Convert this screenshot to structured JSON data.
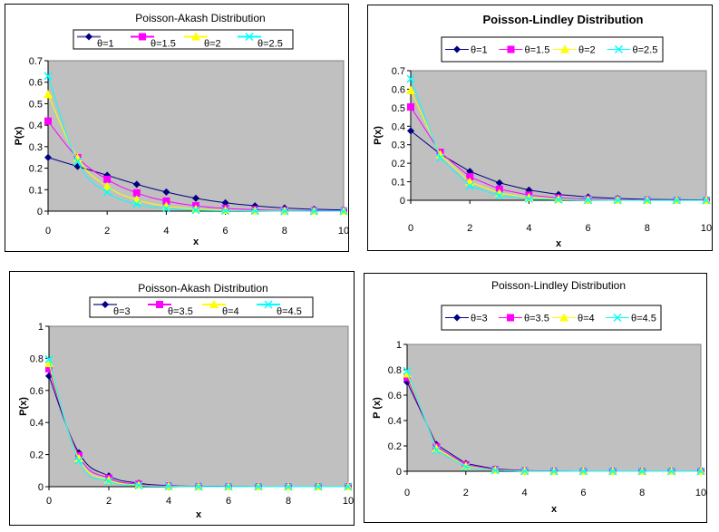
{
  "chart_data": [
    {
      "type": "line",
      "title": "Poisson-Akash Distribution",
      "xlabel": "x",
      "ylabel": "P(x)",
      "x": [
        0,
        1,
        2,
        3,
        4,
        5,
        6,
        7,
        8,
        9,
        10
      ],
      "xticks": [
        0,
        2,
        4,
        6,
        8,
        10
      ],
      "xlim": [
        0,
        10
      ],
      "ylim": [
        0,
        0.7
      ],
      "yticks": [
        0,
        0.1,
        0.2,
        0.3,
        0.4,
        0.5,
        0.6,
        0.7
      ],
      "ytick_labels": [
        "0",
        "0.1",
        "0.2",
        "0.3",
        "0.4",
        "0.5",
        "0.6",
        "0.7"
      ],
      "legend_position": "top",
      "grid": false,
      "series": [
        {
          "name": "θ=1",
          "color": "#000080",
          "marker": "diamond",
          "values": [
            0.25,
            0.208,
            0.167,
            0.125,
            0.089,
            0.06,
            0.039,
            0.025,
            0.015,
            0.009,
            0.006
          ]
        },
        {
          "name": "θ=1.5",
          "color": "#FF00FF",
          "marker": "square",
          "values": [
            0.419,
            0.249,
            0.148,
            0.085,
            0.047,
            0.025,
            0.013,
            0.007,
            0.003,
            0.002,
            0.001
          ]
        },
        {
          "name": "θ=2",
          "color": "#FFFF00",
          "marker": "triangle",
          "values": [
            0.543,
            0.247,
            0.115,
            0.053,
            0.024,
            0.01,
            0.004,
            0.002,
            0.001,
            0.0,
            0.0
          ]
        },
        {
          "name": "θ=2.5",
          "color": "#00FFFF",
          "marker": "x",
          "values": [
            0.629,
            0.23,
            0.088,
            0.033,
            0.012,
            0.005,
            0.002,
            0.001,
            0.0,
            0.0,
            0.0
          ]
        }
      ]
    },
    {
      "type": "line",
      "title": "Poisson-Lindley Distribution",
      "xlabel": "x",
      "ylabel": "P(x)",
      "x": [
        0,
        1,
        2,
        3,
        4,
        5,
        6,
        7,
        8,
        9,
        10
      ],
      "xticks": [
        0,
        2,
        4,
        6,
        8,
        10
      ],
      "xlim": [
        0,
        10
      ],
      "ylim": [
        0,
        0.7
      ],
      "yticks": [
        0,
        0.1,
        0.2,
        0.3,
        0.4,
        0.5,
        0.6,
        0.7
      ],
      "ytick_labels": [
        "0",
        "0.1",
        "0.2",
        "0.3",
        "0.4",
        "0.5",
        "0.6",
        "0.7"
      ],
      "legend_position": "top",
      "grid": false,
      "series": [
        {
          "name": "θ=1",
          "color": "#000080",
          "marker": "diamond",
          "values": [
            0.375,
            0.25,
            0.156,
            0.094,
            0.055,
            0.031,
            0.018,
            0.01,
            0.005,
            0.003,
            0.002
          ]
        },
        {
          "name": "θ=1.5",
          "color": "#FF00FF",
          "marker": "square",
          "values": [
            0.504,
            0.259,
            0.127,
            0.06,
            0.028,
            0.013,
            0.006,
            0.003,
            0.001,
            0.0,
            0.0
          ]
        },
        {
          "name": "θ=2",
          "color": "#FFFF00",
          "marker": "triangle",
          "values": [
            0.593,
            0.247,
            0.099,
            0.038,
            0.015,
            0.006,
            0.002,
            0.001,
            0.0,
            0.0,
            0.0
          ]
        },
        {
          "name": "θ=2.5",
          "color": "#00FFFF",
          "marker": "x",
          "values": [
            0.656,
            0.229,
            0.077,
            0.025,
            0.008,
            0.003,
            0.001,
            0.0,
            0.0,
            0.0,
            0.0
          ]
        }
      ]
    },
    {
      "type": "line",
      "title": "Poisson-Akash Distribution",
      "xlabel": "x",
      "ylabel": "P(x)",
      "x": [
        0,
        1,
        2,
        3,
        4,
        5,
        6,
        7,
        8,
        9,
        10
      ],
      "xticks": [
        0,
        2,
        4,
        6,
        8,
        10
      ],
      "xlim": [
        0,
        10
      ],
      "ylim": [
        0,
        1
      ],
      "yticks": [
        0,
        0.2,
        0.4,
        0.6,
        0.8,
        1
      ],
      "ytick_labels": [
        "0",
        "0.2",
        "0.4",
        "0.6",
        "0.8",
        "1"
      ],
      "legend_position": "top",
      "grid": false,
      "series": [
        {
          "name": "θ=3",
          "color": "#000080",
          "marker": "diamond",
          "values": [
            0.69,
            0.211,
            0.067,
            0.022,
            0.007,
            0.002,
            0.001,
            0.0,
            0.0,
            0.0,
            0.0
          ]
        },
        {
          "name": "θ=3.5",
          "color": "#FF00FF",
          "marker": "square",
          "values": [
            0.735,
            0.193,
            0.053,
            0.015,
            0.004,
            0.001,
            0.0,
            0.0,
            0.0,
            0.0,
            0.0
          ]
        },
        {
          "name": "θ=4",
          "color": "#FFFF00",
          "marker": "triangle",
          "values": [
            0.768,
            0.176,
            0.042,
            0.01,
            0.003,
            0.001,
            0.0,
            0.0,
            0.0,
            0.0,
            0.0
          ]
        },
        {
          "name": "θ=4.5",
          "color": "#00FFFF",
          "marker": "x",
          "values": [
            0.794,
            0.162,
            0.034,
            0.007,
            0.002,
            0.0,
            0.0,
            0.0,
            0.0,
            0.0,
            0.0
          ]
        }
      ]
    },
    {
      "type": "line",
      "title": "Poisson-Lindley Distribution",
      "xlabel": "x",
      "ylabel": "P (x)",
      "x": [
        0,
        1,
        2,
        3,
        4,
        5,
        6,
        7,
        8,
        9,
        10
      ],
      "xticks": [
        0,
        2,
        4,
        6,
        8,
        10
      ],
      "xlim": [
        0,
        10
      ],
      "ylim": [
        0,
        1
      ],
      "yticks": [
        0,
        0.2,
        0.4,
        0.6,
        0.8,
        1
      ],
      "ytick_labels": [
        "0",
        "0.2",
        "0.4",
        "0.6",
        "0.8",
        "1"
      ],
      "legend_position": "top",
      "grid": false,
      "series": [
        {
          "name": "θ=3",
          "color": "#000080",
          "marker": "diamond",
          "values": [
            0.703,
            0.211,
            0.062,
            0.018,
            0.005,
            0.001,
            0.0,
            0.0,
            0.0,
            0.0,
            0.0
          ]
        },
        {
          "name": "θ=3.5",
          "color": "#FF00FF",
          "marker": "square",
          "values": [
            0.739,
            0.194,
            0.051,
            0.013,
            0.003,
            0.001,
            0.0,
            0.0,
            0.0,
            0.0,
            0.0
          ]
        },
        {
          "name": "θ=4",
          "color": "#FFFF00",
          "marker": "triangle",
          "values": [
            0.768,
            0.179,
            0.041,
            0.009,
            0.002,
            0.0,
            0.0,
            0.0,
            0.0,
            0.0,
            0.0
          ]
        },
        {
          "name": "θ=4.5",
          "color": "#00FFFF",
          "marker": "x",
          "values": [
            0.791,
            0.166,
            0.034,
            0.007,
            0.001,
            0.0,
            0.0,
            0.0,
            0.0,
            0.0,
            0.0
          ]
        }
      ]
    }
  ]
}
